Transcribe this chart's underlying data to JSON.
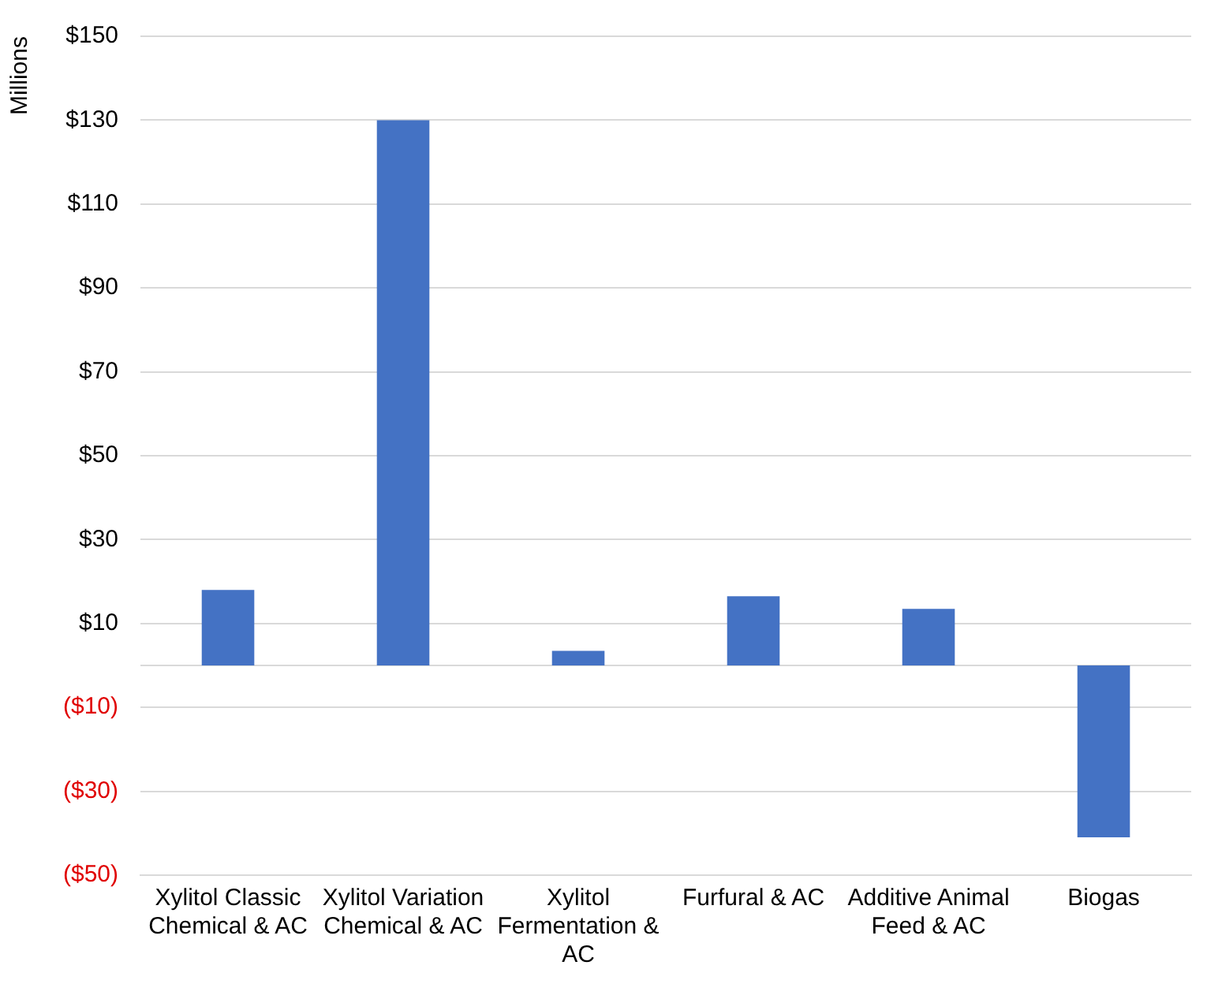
{
  "chart_data": {
    "type": "bar",
    "ylabel": "Millions",
    "categories": [
      "Xylitol Classic Chemical & AC",
      "Xylitol Variation Chemical & AC",
      "Xylitol Fermentation & AC",
      "Furfural & AC",
      "Additive Animal Feed & AC",
      "Biogas"
    ],
    "values": [
      18,
      130,
      3.5,
      16.5,
      13.5,
      -41
    ],
    "color": "#4472c4",
    "ylim": [
      -50,
      150
    ],
    "yticks": [
      {
        "value": -50,
        "label": "($50)"
      },
      {
        "value": -30,
        "label": "($30)"
      },
      {
        "value": -10,
        "label": "($10)"
      },
      {
        "value": 10,
        "label": "$10"
      },
      {
        "value": 30,
        "label": "$30"
      },
      {
        "value": 50,
        "label": "$50"
      },
      {
        "value": 70,
        "label": "$70"
      },
      {
        "value": 90,
        "label": "$90"
      },
      {
        "value": 110,
        "label": "$110"
      },
      {
        "value": 130,
        "label": "$130"
      },
      {
        "value": 150,
        "label": "$150"
      }
    ],
    "grid": "y",
    "legend": false
  }
}
